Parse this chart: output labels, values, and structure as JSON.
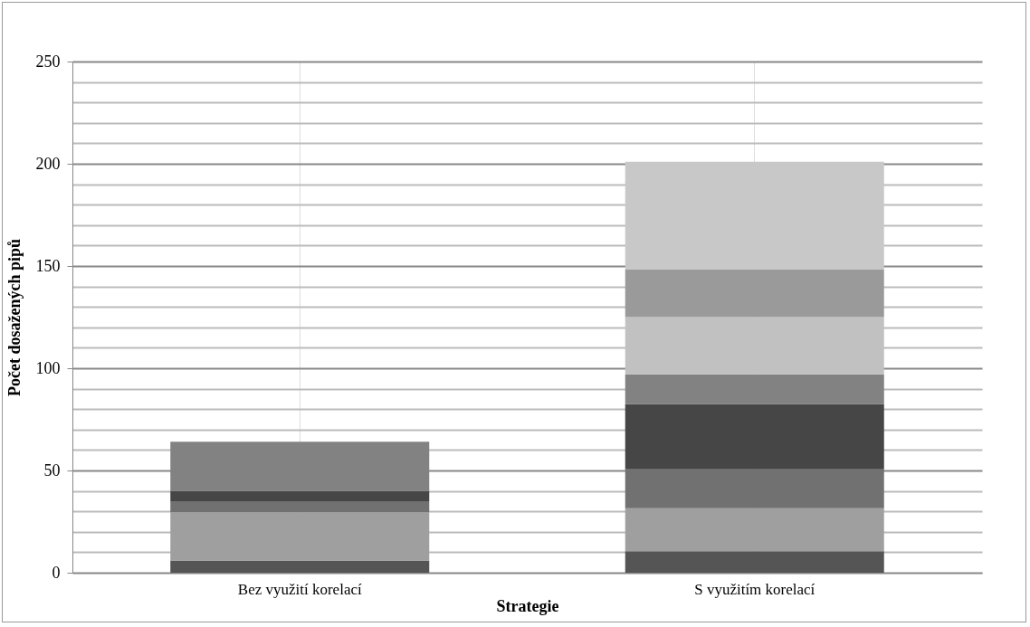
{
  "chart_data": {
    "type": "bar",
    "stacked": true,
    "xlabel": "Strategie",
    "ylabel": "Počet dosažených pipů",
    "categories": [
      "Bez využití korelací",
      "S využitím korelací"
    ],
    "series": [
      {
        "color": "#555555",
        "values": [
          6,
          10.5
        ]
      },
      {
        "color": "#9f9f9f",
        "values": [
          23.5,
          21
        ]
      },
      {
        "color": "#717171",
        "values": [
          5.5,
          19
        ]
      },
      {
        "color": "#464646",
        "values": [
          5,
          32
        ]
      },
      {
        "color": "#828282",
        "values": [
          24,
          14.5
        ]
      },
      {
        "color": "#c1c1c1",
        "values": [
          null,
          28
        ]
      },
      {
        "color": "#9a9a9a",
        "values": [
          null,
          23.5
        ]
      },
      {
        "color": "#c8c8c8",
        "values": [
          null,
          52.5
        ]
      }
    ],
    "ylim": [
      0,
      250
    ],
    "yticks": [
      0,
      {
        "value": 10,
        "label": null
      },
      {
        "value": 20,
        "label": null
      },
      {
        "value": 30,
        "label": null
      },
      {
        "value": 40,
        "label": null
      },
      50,
      {
        "value": 60,
        "label": null
      },
      {
        "value": 70,
        "label": null
      },
      {
        "value": 80,
        "label": null
      },
      {
        "value": 90,
        "label": null
      },
      100,
      {
        "value": 110,
        "label": null
      },
      {
        "value": 120,
        "label": null
      },
      {
        "value": 130,
        "label": null
      },
      {
        "value": 140,
        "label": null
      },
      150,
      {
        "value": 160,
        "label": null
      },
      {
        "value": 170,
        "label": null
      },
      {
        "value": 180,
        "label": null
      },
      {
        "value": 190,
        "label": null
      },
      200,
      {
        "value": 210,
        "label": null
      },
      {
        "value": 220,
        "label": null
      },
      {
        "value": 230,
        "label": null
      },
      {
        "value": 240,
        "label": null
      },
      250
    ],
    "grid": true,
    "legend": false
  }
}
